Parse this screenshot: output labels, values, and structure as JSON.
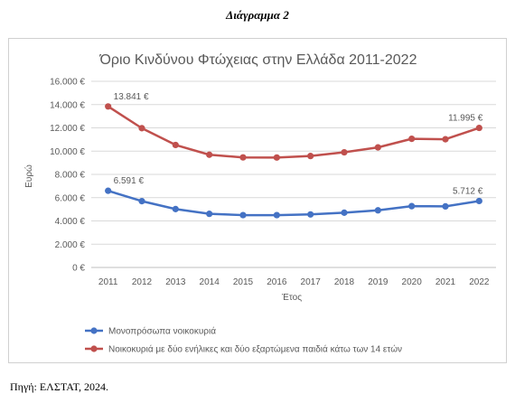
{
  "heading": "Διάγραμμα 2",
  "source": "Πηγή: ΕΛΣΤΑΤ, 2024.",
  "chart_data": {
    "type": "line",
    "title": "Όριο Κινδύνου Φτώχειας στην Ελλάδα 2011-2022",
    "xlabel": "Έτος",
    "ylabel": "Ευρώ",
    "x": [
      "2011",
      "2012",
      "2013",
      "2014",
      "2015",
      "2016",
      "2017",
      "2018",
      "2019",
      "2020",
      "2021",
      "2022"
    ],
    "ylim": [
      0,
      16000
    ],
    "yticks": [
      0,
      2000,
      4000,
      6000,
      8000,
      10000,
      12000,
      14000,
      16000
    ],
    "ytick_labels": [
      "0 €",
      "2.000 €",
      "4.000 €",
      "6.000 €",
      "8.000 €",
      "10.000 €",
      "12.000 €",
      "14.000 €",
      "16.000 €"
    ],
    "grid": "horizontal",
    "legend_position": "bottom-left",
    "series": [
      {
        "name": "Μονοπρόσωπα νοικοκυριά",
        "color": "#4472c4",
        "values": [
          6591,
          5700,
          5020,
          4610,
          4500,
          4500,
          4560,
          4710,
          4910,
          5270,
          5250,
          5712
        ],
        "data_labels": {
          "0": "6.591 €",
          "11": "5.712 €"
        }
      },
      {
        "name": "Νοικοκυριά με δύο ενήλικες και δύο εξαρτώμενα παιδιά κάτω των 14 ετών",
        "color": "#c0504d",
        "values": [
          13841,
          11970,
          10530,
          9690,
          9460,
          9450,
          9580,
          9900,
          10320,
          11060,
          11020,
          11995
        ],
        "data_labels": {
          "0": "13.841 €",
          "11": "11.995 €"
        }
      }
    ]
  }
}
